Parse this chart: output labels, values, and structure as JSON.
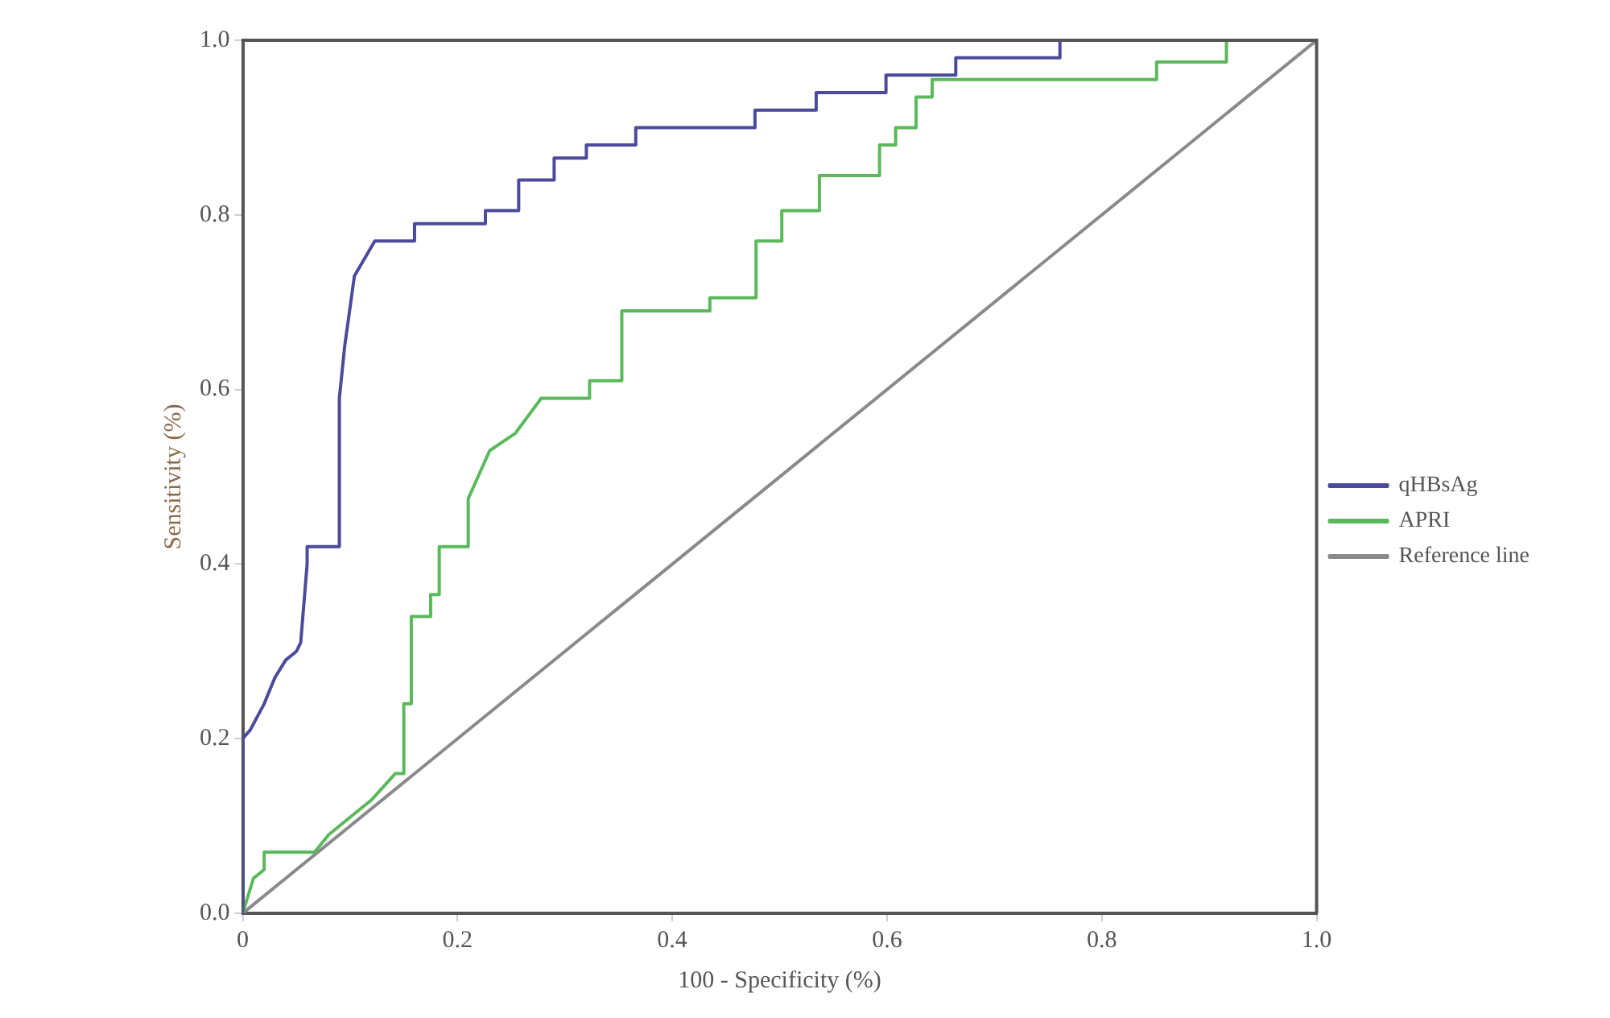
{
  "chart_data": {
    "type": "line",
    "xlabel": "100 - Specificity (%)",
    "ylabel": "Sensitivity (%)",
    "xlim": [
      0,
      1
    ],
    "ylim": [
      0,
      1
    ],
    "xticks": [
      0,
      0.2,
      0.4,
      0.6,
      0.8,
      {
        "value": 1,
        "label": "1.0"
      }
    ],
    "yticks": [
      {
        "value": 0,
        "label": "0.0"
      },
      0.2,
      0.4,
      0.6,
      0.8,
      {
        "value": 1,
        "label": "1.0"
      }
    ],
    "grid": false,
    "legend": "right",
    "marker": "none",
    "line_style": "solid",
    "series": [
      {
        "name": "qHBsAg",
        "color": "#4b4b9b",
        "x": [
          0,
          0,
          0.007,
          0.02,
          0.03,
          0.04,
          0.05,
          0.054,
          0.06,
          0.06,
          0.09,
          0.09,
          0.095,
          0.104,
          0.123,
          0.16,
          0.16,
          0.226,
          0.226,
          0.257,
          0.257,
          0.29,
          0.29,
          0.32,
          0.32,
          0.366,
          0.366,
          0.477,
          0.477,
          0.534,
          0.534,
          0.599,
          0.599,
          0.664,
          0.664,
          0.761,
          0.761,
          1
        ],
        "values": [
          0,
          0.2,
          0.21,
          0.24,
          0.27,
          0.29,
          0.3,
          0.31,
          0.4,
          0.42,
          0.42,
          0.59,
          0.65,
          0.73,
          0.77,
          0.77,
          0.79,
          0.79,
          0.805,
          0.805,
          0.84,
          0.84,
          0.865,
          0.865,
          0.88,
          0.88,
          0.9,
          0.9,
          0.92,
          0.92,
          0.94,
          0.94,
          0.96,
          0.96,
          0.98,
          0.98,
          1,
          1
        ]
      },
      {
        "name": "APRI",
        "color": "#5cb85c",
        "x": [
          0,
          0.01,
          0.02,
          0.02,
          0.067,
          0.08,
          0.1,
          0.12,
          0.142,
          0.15,
          0.15,
          0.157,
          0.157,
          0.175,
          0.175,
          0.183,
          0.183,
          0.21,
          0.21,
          0.23,
          0.254,
          0.278,
          0.323,
          0.323,
          0.353,
          0.353,
          0.384,
          0.435,
          0.435,
          0.478,
          0.478,
          0.502,
          0.502,
          0.537,
          0.537,
          0.593,
          0.593,
          0.608,
          0.608,
          0.627,
          0.627,
          0.642,
          0.642,
          0.651,
          0.651,
          0.851,
          0.851,
          0.916,
          0.916,
          1
        ],
        "values": [
          0,
          0.04,
          0.05,
          0.07,
          0.07,
          0.09,
          0.11,
          0.13,
          0.16,
          0.16,
          0.24,
          0.24,
          0.34,
          0.34,
          0.365,
          0.365,
          0.42,
          0.42,
          0.475,
          0.53,
          0.55,
          0.59,
          0.59,
          0.61,
          0.61,
          0.69,
          0.69,
          0.69,
          0.705,
          0.705,
          0.77,
          0.77,
          0.805,
          0.805,
          0.845,
          0.845,
          0.88,
          0.88,
          0.9,
          0.9,
          0.935,
          0.935,
          0.955,
          0.955,
          0.955,
          0.955,
          0.975,
          0.975,
          1,
          1
        ]
      },
      {
        "name": "Reference line",
        "color": "#8a8a8a",
        "type": "line",
        "x": [
          0,
          1
        ],
        "values": [
          0,
          1
        ]
      }
    ]
  }
}
